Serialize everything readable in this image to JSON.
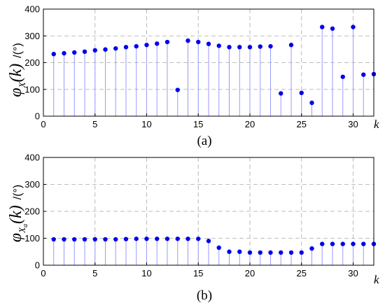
{
  "colors": {
    "stem": "#9999ff",
    "marker": "#0000ee",
    "grid": "#a9a9a9"
  },
  "chart_data": [
    {
      "type": "stem",
      "caption": "(a)",
      "xlabel": "k",
      "ylabel": "φX(k)",
      "ylabel_main": "φ",
      "ylabel_sub": "X",
      "ylabel_arg": "(k)",
      "yunit": "/(°)",
      "xlim": [
        0,
        32
      ],
      "ylim": [
        0,
        400
      ],
      "xticks": [
        0,
        5,
        10,
        15,
        20,
        25,
        30
      ],
      "yticks": [
        0,
        100,
        200,
        300,
        400
      ],
      "grid": true,
      "series": [
        {
          "x": [
            1,
            2,
            3,
            4,
            5,
            6,
            7,
            8,
            9,
            10,
            11,
            12,
            13,
            14,
            15,
            16,
            17,
            18,
            19,
            20,
            21,
            22,
            23,
            24,
            25,
            26,
            27,
            28,
            29,
            30,
            31,
            32
          ],
          "values": [
            232,
            235,
            238,
            241,
            246,
            249,
            253,
            258,
            261,
            266,
            271,
            277,
            98,
            282,
            277,
            270,
            263,
            258,
            258,
            258,
            260,
            261,
            85,
            266,
            87,
            50,
            333,
            327,
            147,
            333,
            155,
            157
          ]
        }
      ]
    },
    {
      "type": "stem",
      "caption": "(b)",
      "xlabel": "k",
      "ylabel": "φXa(k)",
      "ylabel_main": "φ",
      "ylabel_sub": "X",
      "ylabel_sub2": "a",
      "ylabel_arg": "(k)",
      "yunit": "/(°)",
      "xlim": [
        0,
        32
      ],
      "ylim": [
        0,
        400
      ],
      "xticks": [
        0,
        5,
        10,
        15,
        20,
        25,
        30
      ],
      "yticks": [
        0,
        100,
        200,
        300,
        400
      ],
      "grid": true,
      "series": [
        {
          "x": [
            1,
            2,
            3,
            4,
            5,
            6,
            7,
            8,
            9,
            10,
            11,
            12,
            13,
            14,
            15,
            16,
            17,
            18,
            19,
            20,
            21,
            22,
            23,
            24,
            25,
            26,
            27,
            28,
            29,
            30,
            31,
            32
          ],
          "values": [
            96,
            96,
            96,
            96,
            96,
            96,
            96,
            97,
            98,
            98,
            98,
            98,
            98,
            98,
            98,
            90,
            65,
            50,
            50,
            47,
            47,
            47,
            47,
            47,
            47,
            62,
            79,
            79,
            79,
            79,
            79,
            79
          ]
        }
      ]
    }
  ]
}
